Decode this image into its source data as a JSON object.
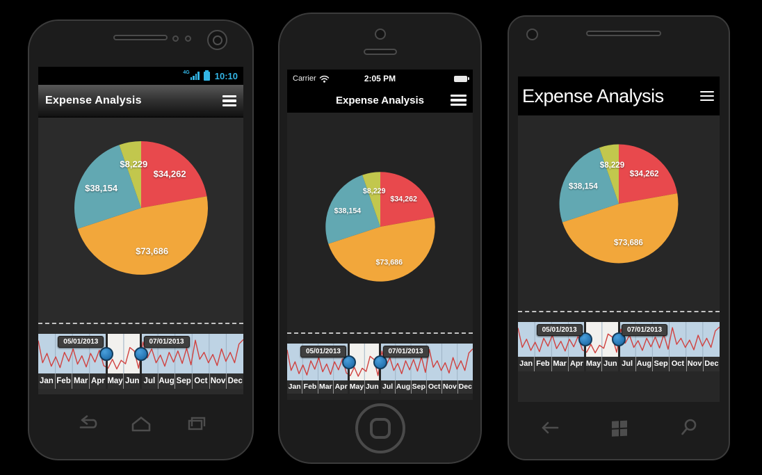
{
  "app": {
    "title": "Expense Analysis",
    "menu_icon": "hamburger-icon"
  },
  "phones": {
    "android": {
      "status": {
        "network": "4G",
        "time": "10:10",
        "accent_color": "#33b5e5"
      },
      "nav_icons": [
        "back-icon",
        "home-icon",
        "recents-icon"
      ]
    },
    "iphone": {
      "status": {
        "carrier": "Carrier",
        "time": "2:05 PM"
      },
      "nav_icons": [
        "home-button"
      ]
    },
    "windows": {
      "nav_icons": [
        "back-icon",
        "windows-logo-icon",
        "search-icon"
      ]
    }
  },
  "chart_data": [
    {
      "type": "pie",
      "title": "Expense Analysis",
      "labels": [
        "$34,262",
        "$73,686",
        "$38,154",
        "$8,229"
      ],
      "values": [
        34262,
        73686,
        38154,
        8229
      ],
      "colors": [
        "#e8494d",
        "#f2a73b",
        "#62a8b2",
        "#c2c74d"
      ],
      "label_color": "#ffffff",
      "start_angle_deg": 0,
      "direction": "clockwise"
    },
    {
      "type": "line",
      "role": "date-range-selector",
      "categories": [
        "Jan",
        "Feb",
        "Mar",
        "Apr",
        "May",
        "Jun",
        "Jul",
        "Aug",
        "Sep",
        "Oct",
        "Nov",
        "Dec"
      ],
      "values": [
        92,
        28,
        55,
        18,
        45,
        14,
        58,
        32,
        68,
        24,
        48,
        16,
        55,
        30,
        64,
        20,
        12,
        38,
        10,
        35,
        25,
        72,
        62,
        12,
        88,
        42,
        68,
        28,
        50,
        18,
        58,
        30,
        62,
        26,
        70,
        22,
        93,
        38,
        58,
        28,
        52,
        20,
        68,
        32,
        58,
        28,
        82,
        95
      ],
      "ylim": [
        0,
        100
      ],
      "line_color": "#d0413f",
      "plot_bg": "#bed3e4",
      "selection_bg": "#f2f1ee",
      "grid_color": "#9db2c4",
      "handle_color": "#2d80c3",
      "selection": {
        "start_label": "05/01/2013",
        "end_label": "07/01/2013",
        "start_frac": 0.33333,
        "end_frac": 0.5
      }
    }
  ]
}
